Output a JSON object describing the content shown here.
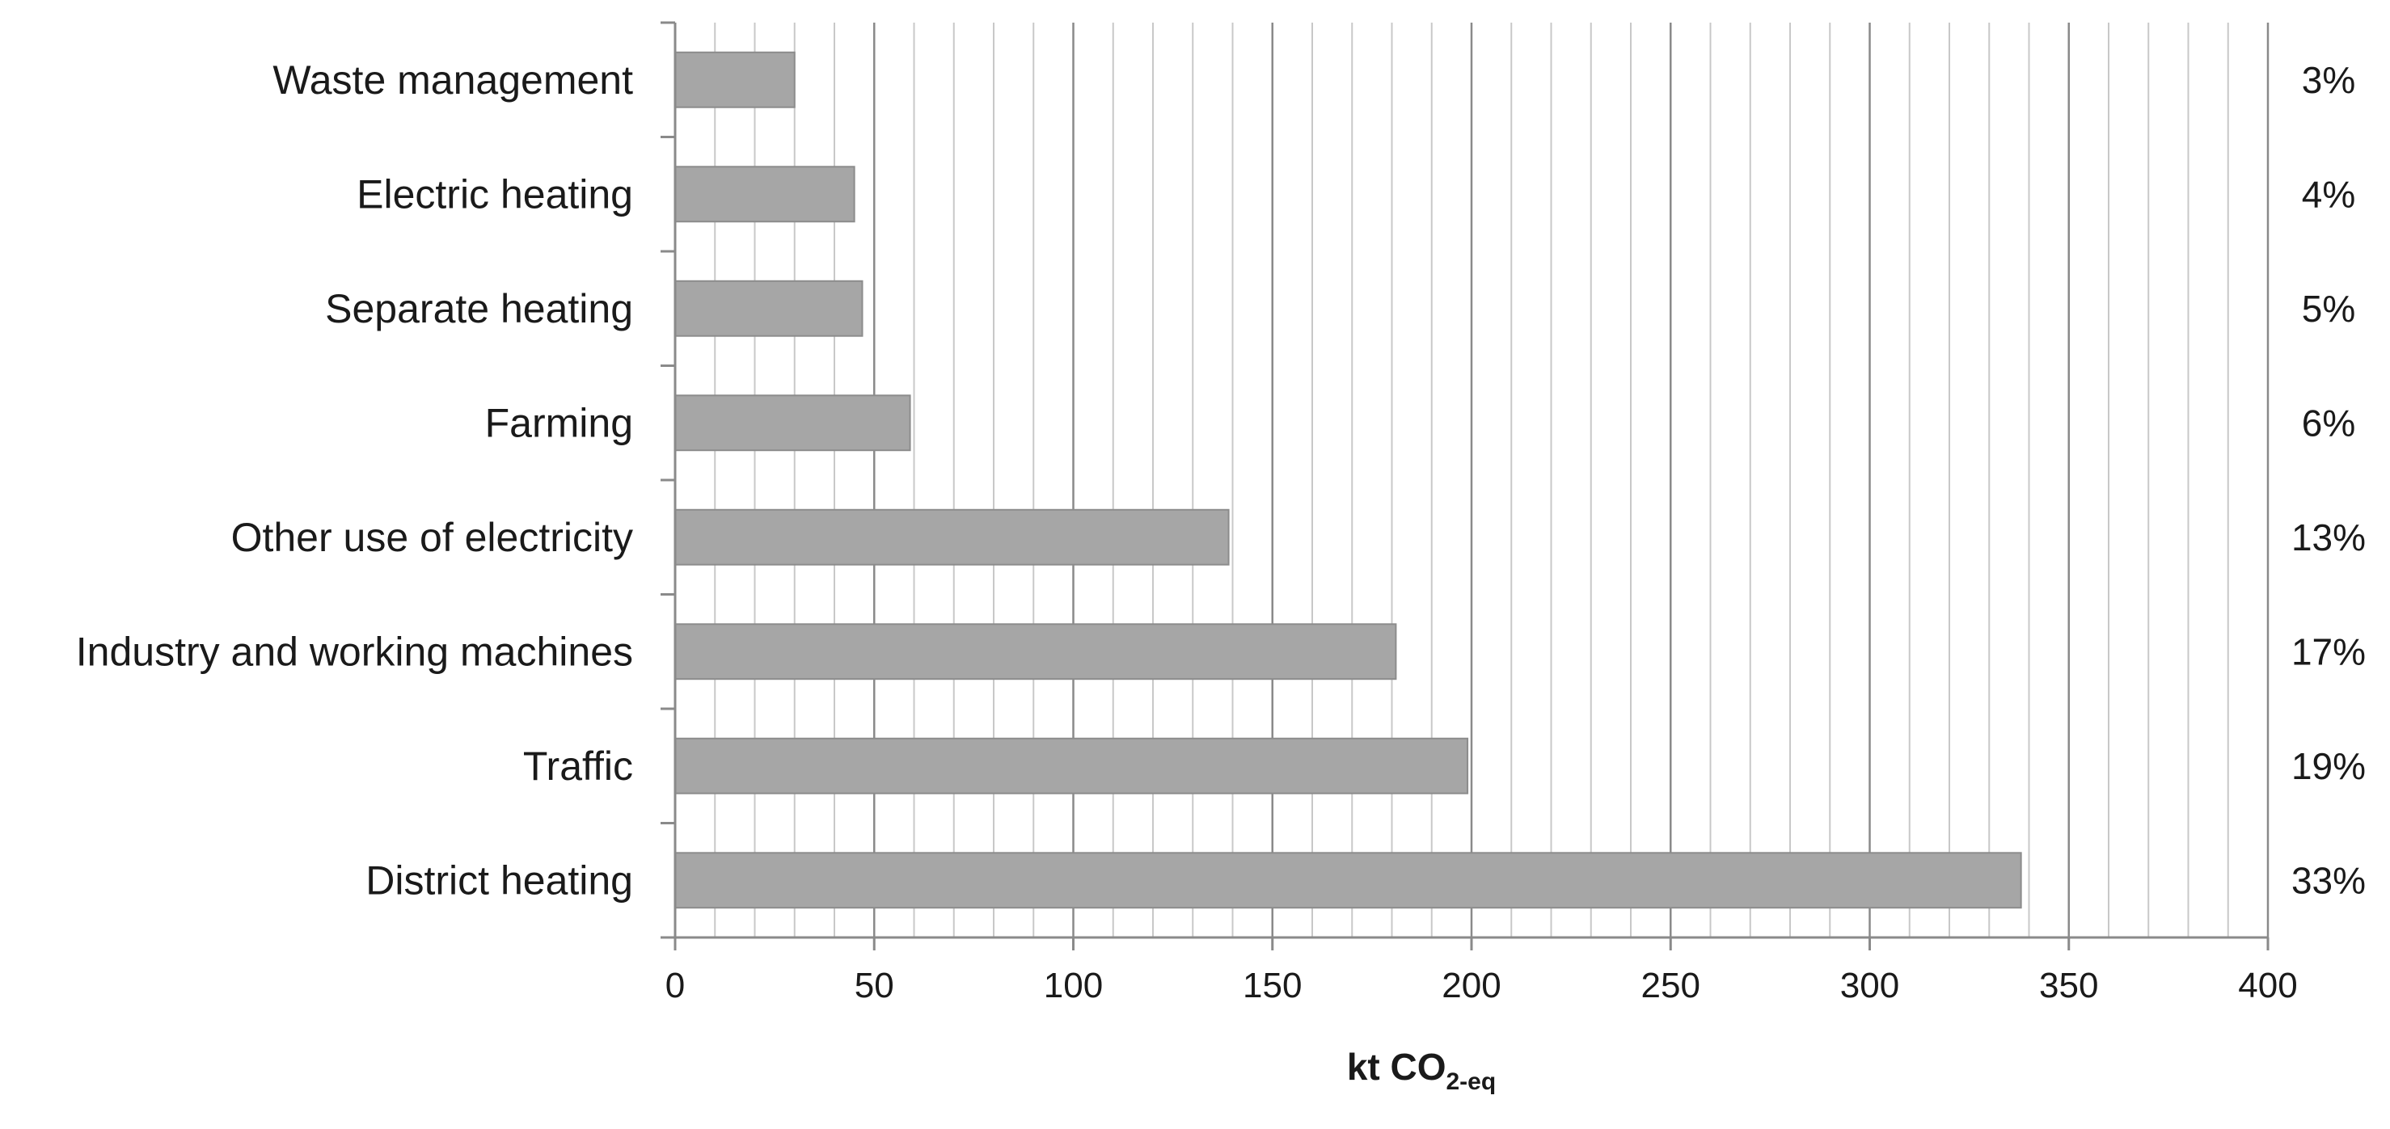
{
  "chart_data": {
    "type": "bar",
    "orientation": "horizontal",
    "categories": [
      "Waste management",
      "Electric heating",
      "Separate heating",
      "Farming",
      "Other use of electricity",
      "Industry and working machines",
      "Traffic",
      "District heating"
    ],
    "values": [
      30,
      45,
      47,
      59,
      139,
      181,
      199,
      338
    ],
    "percent_labels": [
      "3%",
      "4%",
      "5%",
      "6%",
      "13%",
      "17%",
      "19%",
      "33%"
    ],
    "xlabel": {
      "main": "kt CO",
      "subscript": "2-eq"
    },
    "xlim": [
      0,
      400
    ],
    "xticks": [
      "0",
      "50",
      "100",
      "150",
      "200",
      "250",
      "300",
      "350",
      "400"
    ],
    "x_tick_values": [
      0,
      50,
      100,
      150,
      200,
      250,
      300,
      350,
      400
    ],
    "major_step": 50,
    "minor_step": 10,
    "grid": true,
    "colors": {
      "bar_fill": "#a6a6a6",
      "bar_stroke": "#8c8c8c",
      "major_grid": "#8a8a8a",
      "minor_grid": "#c8c8c8",
      "axis": "#8a8a8a"
    }
  }
}
